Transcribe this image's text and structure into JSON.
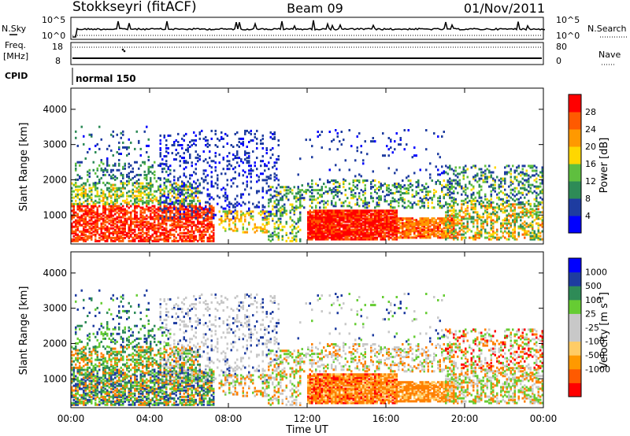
{
  "header": {
    "station": "Stokkseyri (fitACF)",
    "beam": "Beam 09",
    "date": "01/Nov/2011"
  },
  "noise_panel": {
    "left_label": "N.Sky",
    "right_label": "N.Search",
    "left_ticks": [
      "10^5",
      "10^0"
    ],
    "right_ticks": [
      "10^5",
      "10^0"
    ]
  },
  "freq_panel": {
    "left_label_line1": "Freq.",
    "left_label_line2": "[MHz]",
    "right_label": "Nave",
    "left_ticks": [
      "18",
      "8"
    ],
    "right_ticks": [
      "80",
      "0"
    ]
  },
  "cpid": {
    "label": "CPID",
    "value": "normal 150"
  },
  "colors": {
    "power_scale": [
      "#0000ff",
      "#1e3ca0",
      "#2e8b57",
      "#5fbf3f",
      "#ffd700",
      "#ff9900",
      "#ff5a00",
      "#ff0000"
    ],
    "velocity_scale": [
      "#ff0000",
      "#ff5a00",
      "#ff9900",
      "#ffcc66",
      "#c8c8c8",
      "#c8c8c8",
      "#66cc33",
      "#2e8b57",
      "#1e3ca0",
      "#0000ff"
    ]
  },
  "chart_data": [
    {
      "type": "heatmap",
      "panel": "power",
      "ylabel": "Slant Range [km]",
      "yticks": [
        "1000",
        "2000",
        "3000",
        "4000"
      ],
      "ylim": [
        180,
        4600
      ],
      "xlim": [
        "00:00",
        "24:00"
      ],
      "colorbar_label": "Power [dB]",
      "colorbar_ticks": [
        "4",
        "8",
        "12",
        "16",
        "20",
        "24",
        "28"
      ],
      "colorbar_range": [
        0,
        32
      ]
    },
    {
      "type": "heatmap",
      "panel": "velocity",
      "ylabel": "Slant Range [km]",
      "yticks": [
        "1000",
        "2000",
        "3000",
        "4000"
      ],
      "ylim": [
        180,
        4600
      ],
      "xlabel": "Time UT",
      "xticks": [
        "00:00",
        "04:00",
        "08:00",
        "12:00",
        "16:00",
        "20:00",
        "00:00"
      ],
      "xlim": [
        "00:00",
        "24:00"
      ],
      "colorbar_label": "Velocity [m s-1]",
      "colorbar_ticks": [
        "1000",
        "500",
        "100",
        "25",
        "-25",
        "-100",
        "-500",
        "-1000"
      ]
    }
  ]
}
